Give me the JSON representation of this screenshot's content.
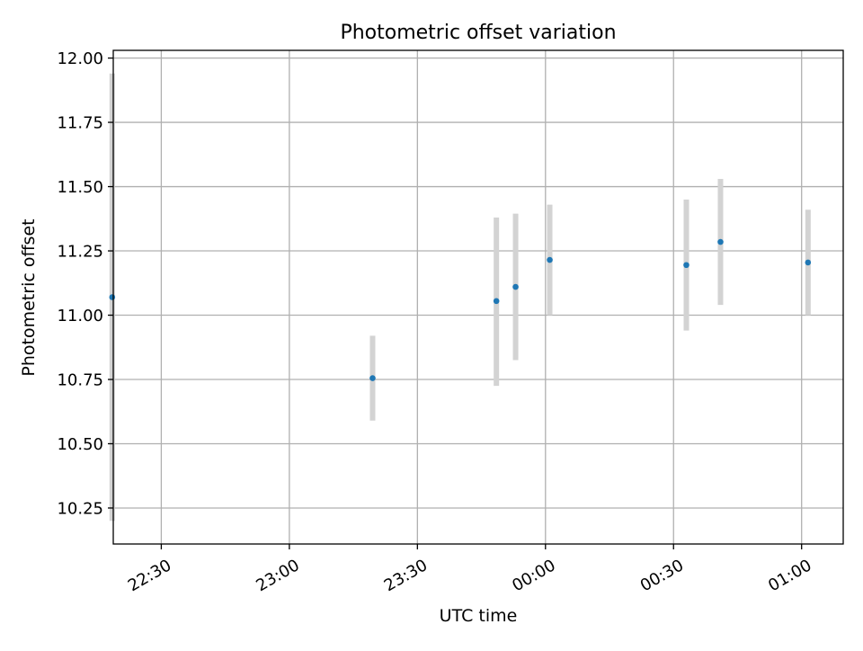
{
  "chart_data": {
    "type": "scatter",
    "title": "Photometric offset variation",
    "xlabel": "UTC time",
    "ylabel": "Photometric offset",
    "x_type": "time",
    "x_ticks": [
      "22:30",
      "23:00",
      "23:30",
      "00:00",
      "00:30",
      "01:00"
    ],
    "y_ticks": [
      "10.25",
      "10.50",
      "10.75",
      "11.00",
      "11.25",
      "11.50",
      "11.75",
      "12.00"
    ],
    "xlim": [
      "22:18:45",
      "01:09:45"
    ],
    "ylim": [
      10.11,
      12.03
    ],
    "grid": true,
    "legend": "none",
    "colors": {
      "point": "#1f77b4",
      "error_bar": "#d3d3d3",
      "grid": "#b0b0b0",
      "axes": "#000000"
    },
    "points": [
      {
        "time": "22:18:30",
        "y": 11.07,
        "yerr_low": 10.2,
        "yerr_high": 11.94
      },
      {
        "time": "23:19:30",
        "y": 10.755,
        "yerr_low": 10.59,
        "yerr_high": 10.92
      },
      {
        "time": "23:48:30",
        "y": 11.055,
        "yerr_low": 10.725,
        "yerr_high": 11.38
      },
      {
        "time": "23:53:00",
        "y": 11.11,
        "yerr_low": 10.825,
        "yerr_high": 11.395
      },
      {
        "time": "00:01:00",
        "y": 11.215,
        "yerr_low": 11.0,
        "yerr_high": 11.43
      },
      {
        "time": "00:33:00",
        "y": 11.195,
        "yerr_low": 10.94,
        "yerr_high": 11.45
      },
      {
        "time": "00:41:00",
        "y": 11.285,
        "yerr_low": 11.04,
        "yerr_high": 11.53
      },
      {
        "time": "01:01:30",
        "y": 11.205,
        "yerr_low": 11.0,
        "yerr_high": 11.41
      }
    ]
  }
}
